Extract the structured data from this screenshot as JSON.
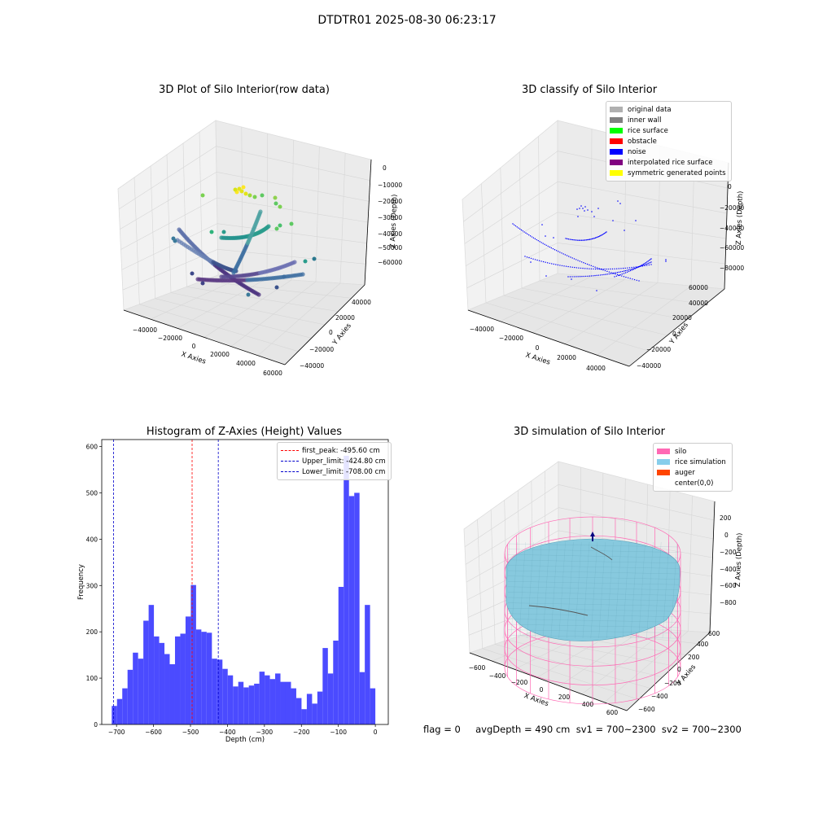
{
  "figure": {
    "suptitle": "DTDTR01 2025-08-30 06:23:17",
    "status": "flag = 0     avgDepth = 490 cm  sv1 = 700~2300  sv2 = 700~2300"
  },
  "colors": {
    "hist_bar": "#4b4bff",
    "first_peak": "#ff0000",
    "limit": "#0000cc",
    "silo": "#ff69b4",
    "rice": "#87cefa",
    "auger": "#ff4500",
    "noise": "#0000ff"
  },
  "chart_data": [
    {
      "type": "scatter",
      "title": "3D Plot of Silo Interior(row data)",
      "xlabel": "X Axies",
      "ylabel": "Y Axies",
      "zlabel": "Z Axies (Depth)",
      "x_ticks": [
        "−40000",
        "−20000",
        "0",
        "20000",
        "40000",
        "60000"
      ],
      "y_ticks": [
        "−40000",
        "−20000",
        "0",
        "20000",
        "40000"
      ],
      "z_ticks": [
        "0",
        "−10000",
        "−20000",
        "−30000",
        "−40000",
        "−50000",
        "−60000"
      ],
      "xlim": [
        -50000,
        60000
      ],
      "ylim": [
        -45000,
        50000
      ],
      "zlim": [
        -65000,
        2000
      ],
      "colormap": "viridis by depth",
      "grid": true
    },
    {
      "type": "scatter",
      "title": "3D classify of Silo Interior",
      "xlabel": "X Axies",
      "ylabel": "Y Axies",
      "zlabel": "Z Axies (Depth)",
      "x_ticks": [
        "−40000",
        "−20000",
        "0",
        "20000",
        "40000"
      ],
      "y_ticks": [
        "−40000",
        "−20000",
        "0",
        "20000",
        "40000",
        "60000"
      ],
      "z_ticks": [
        "0",
        "−20000",
        "−40000",
        "−60000",
        "−80000"
      ],
      "grid": true,
      "legend": {
        "placement": "top-right",
        "entries": [
          {
            "label": "original data",
            "color": "#b0b0b0"
          },
          {
            "label": "inner wall",
            "color": "#808080"
          },
          {
            "label": "rice surface",
            "color": "#00ff00"
          },
          {
            "label": "obstacle",
            "color": "#ff0000"
          },
          {
            "label": "noise",
            "color": "#0000ff"
          },
          {
            "label": "interpolated rice surface",
            "color": "#800080"
          },
          {
            "label": "symmetric generated points",
            "color": "#ffff00"
          }
        ]
      }
    },
    {
      "type": "bar",
      "title": "Histogram of Z-Axies (Height) Values",
      "xlabel": "Depth (cm)",
      "ylabel": "Frequency",
      "xlim": [
        -740,
        35
      ],
      "ylim": [
        0,
        615
      ],
      "x_ticks": [
        -700,
        -600,
        -500,
        -400,
        -300,
        -200,
        -100,
        0
      ],
      "y_ticks": [
        0,
        100,
        200,
        300,
        400,
        500,
        600
      ],
      "bin_start": -713,
      "bin_width": 14.26,
      "values": [
        40,
        55,
        78,
        118,
        155,
        142,
        224,
        258,
        190,
        176,
        152,
        130,
        190,
        196,
        233,
        301,
        205,
        200,
        198,
        142,
        140,
        120,
        106,
        82,
        92,
        80,
        84,
        88,
        114,
        106,
        98,
        110,
        92,
        92,
        78,
        57,
        33,
        66,
        45,
        71,
        165,
        110,
        181,
        297,
        580,
        493,
        500,
        113,
        258,
        78
      ],
      "vlines": [
        {
          "label": "first_peak: -495.60 cm",
          "x": -495.6,
          "color": "#ff0000"
        },
        {
          "label": "Upper_limit: -424.80 cm",
          "x": -424.8,
          "color": "#0000cc"
        },
        {
          "label": "Lower_limit: -708.00 cm",
          "x": -708.0,
          "color": "#0000cc"
        }
      ],
      "legend": "top-right",
      "grid": false
    },
    {
      "type": "surface",
      "title": "3D simulation of Silo Interior",
      "xlabel": "X Axies",
      "ylabel": "Y Axies",
      "zlabel": "Z Axies (Depth)",
      "x_ticks": [
        "−600",
        "−400",
        "−200",
        "0",
        "200",
        "400",
        "600"
      ],
      "y_ticks": [
        "−600",
        "−400",
        "−200",
        "0",
        "200",
        "400",
        "600"
      ],
      "z_ticks": [
        "200",
        "0",
        "−200",
        "−400",
        "−600",
        "−800"
      ],
      "grid": true,
      "legend": {
        "placement": "top-right",
        "entries": [
          {
            "label": "silo",
            "color": "#ff69b4"
          },
          {
            "label": "rice simulation",
            "color": "#87ceeb"
          },
          {
            "label": "auger",
            "color": "#ff4500"
          },
          {
            "label": "center(0,0)",
            "color": ""
          }
        ]
      }
    }
  ]
}
